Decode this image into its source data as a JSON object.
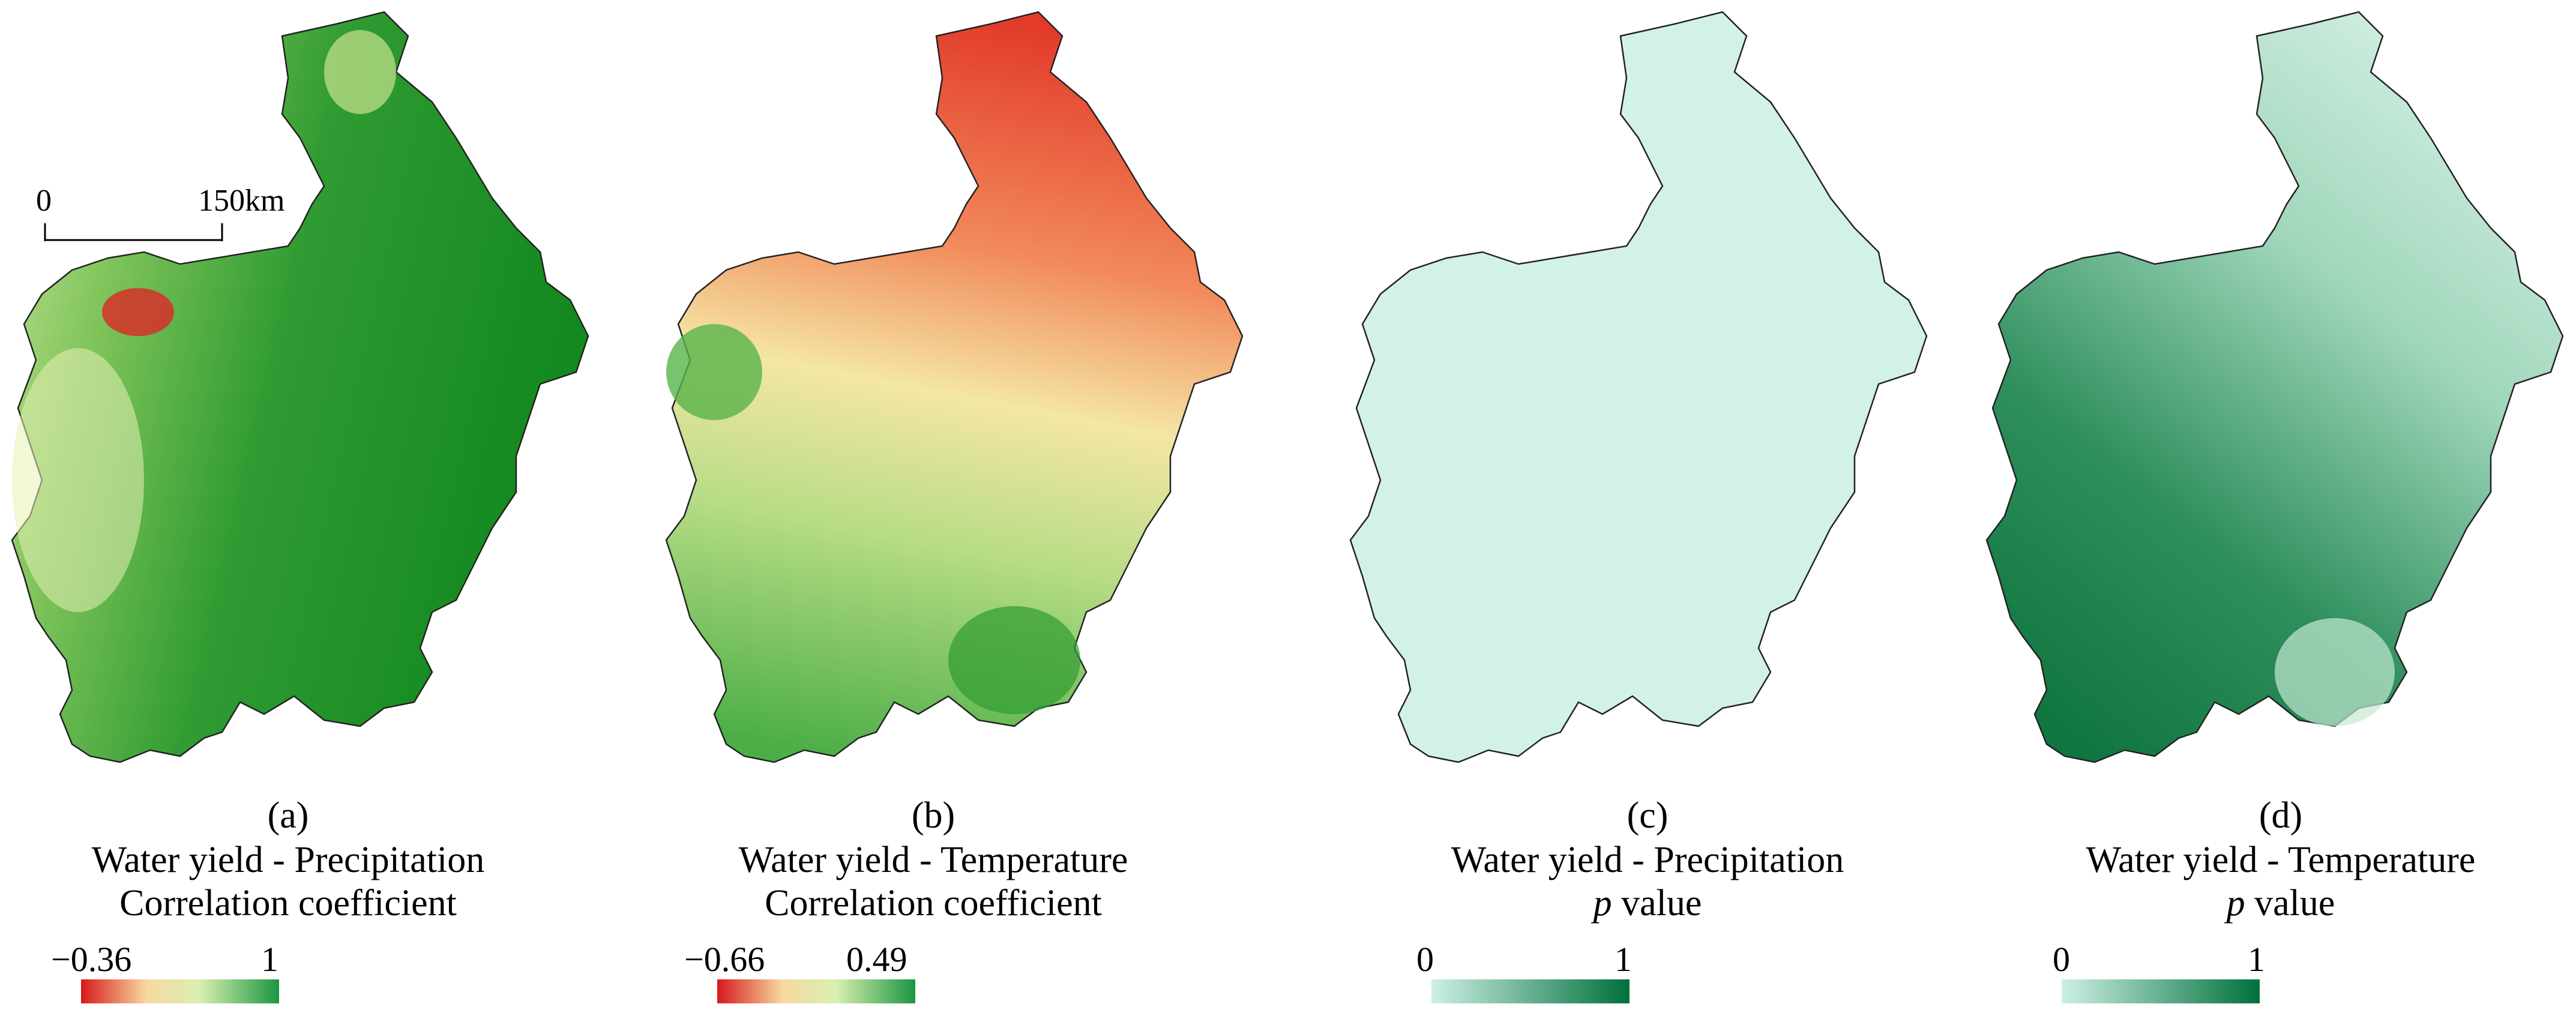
{
  "scale_bar": {
    "left_label": "0",
    "right_label": "150km"
  },
  "panels": [
    {
      "id": "a",
      "label": "(a)",
      "title": "Water yield - Precipitation",
      "subtitle": "Correlation coefficient",
      "legend": {
        "min": "−0.36",
        "max": "1",
        "colors": [
          "#d7191c",
          "#f7d9a0",
          "#d9efb0",
          "#1a9641"
        ]
      }
    },
    {
      "id": "b",
      "label": "(b)",
      "title": "Water yield - Temperature",
      "subtitle": "Correlation coefficient",
      "legend": {
        "min": "−0.66",
        "max": "0.49",
        "colors": [
          "#d7191c",
          "#f7d9a0",
          "#d9efb0",
          "#1a9641"
        ]
      }
    },
    {
      "id": "c",
      "label": "(c)",
      "title": "Water yield - Precipitation",
      "subtitle_prefix": "p",
      "subtitle": "value",
      "legend": {
        "min": "0",
        "max": "1",
        "colors": [
          "#cdf0e4",
          "#00703c"
        ]
      }
    },
    {
      "id": "d",
      "label": "(d)",
      "title": "Water yield - Temperature",
      "subtitle_prefix": "p",
      "subtitle": "value",
      "legend": {
        "min": "0",
        "max": "1",
        "colors": [
          "#cdf0e4",
          "#00703c"
        ]
      }
    }
  ]
}
